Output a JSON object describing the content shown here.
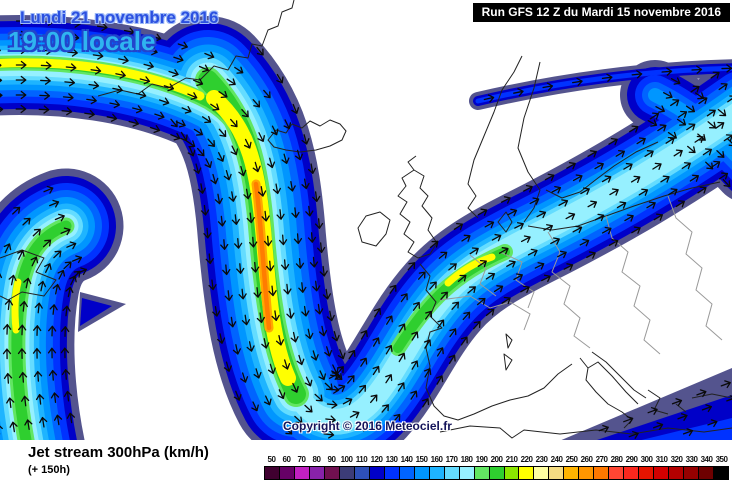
{
  "header": {
    "date": "Lundi 21 novembre 2016",
    "time": "19:00 locale",
    "run": "Run GFS 12 Z du Mardi 15 novembre 2016"
  },
  "map": {
    "copyright": "Copyright © 2016 Meteociel.fr"
  },
  "footer": {
    "title": "Jet stream 300hPa (km/h)",
    "forecast_offset": "(+ 150h)"
  },
  "jet_palette": [
    "#54548e",
    "#0000c8",
    "#0032ff",
    "#0064ff",
    "#0096ff",
    "#1eb4ff",
    "#64dcff",
    "#96f0ff",
    "#62e662",
    "#2fcf2f",
    "#ffff00",
    "#ffa800",
    "#ff7d00"
  ],
  "scale": {
    "unit": "km/h",
    "entries": [
      {
        "value": 50,
        "color": "#400030"
      },
      {
        "value": 60,
        "color": "#660066"
      },
      {
        "value": 70,
        "color": "#c020c0"
      },
      {
        "value": 80,
        "color": "#8822aa"
      },
      {
        "value": 90,
        "color": "#701050"
      },
      {
        "value": 100,
        "color": "#3c3c78"
      },
      {
        "value": 110,
        "color": "#2e50b8"
      },
      {
        "value": 120,
        "color": "#0000c8"
      },
      {
        "value": 130,
        "color": "#0032ff"
      },
      {
        "value": 140,
        "color": "#0064ff"
      },
      {
        "value": 150,
        "color": "#0096ff"
      },
      {
        "value": 160,
        "color": "#1eb4ff"
      },
      {
        "value": 170,
        "color": "#64dcff"
      },
      {
        "value": 180,
        "color": "#96f0ff"
      },
      {
        "value": 190,
        "color": "#62e662"
      },
      {
        "value": 200,
        "color": "#2fcf2f"
      },
      {
        "value": 210,
        "color": "#8ce600"
      },
      {
        "value": 220,
        "color": "#ffff00"
      },
      {
        "value": 230,
        "color": "#ffffa0"
      },
      {
        "value": 240,
        "color": "#f5dc82"
      },
      {
        "value": 250,
        "color": "#ffb400"
      },
      {
        "value": 260,
        "color": "#ff9600"
      },
      {
        "value": 270,
        "color": "#ff7800"
      },
      {
        "value": 280,
        "color": "#ff4633"
      },
      {
        "value": 290,
        "color": "#fa281e"
      },
      {
        "value": 300,
        "color": "#e61400"
      },
      {
        "value": 310,
        "color": "#d20000"
      },
      {
        "value": 320,
        "color": "#b40000"
      },
      {
        "value": 330,
        "color": "#960000"
      },
      {
        "value": 340,
        "color": "#6e0000"
      },
      {
        "value": 350,
        "color": "#000000"
      }
    ]
  }
}
